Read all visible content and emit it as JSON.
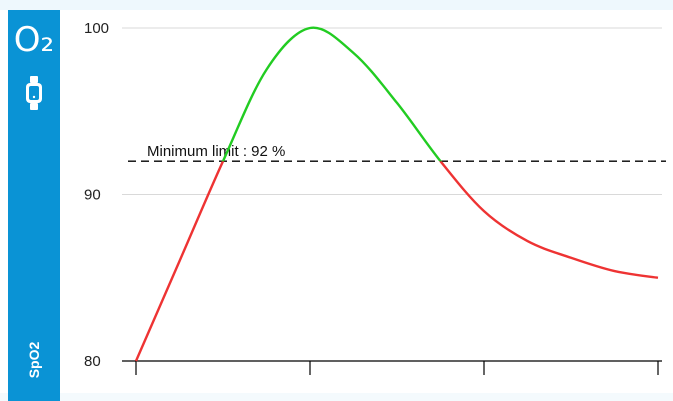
{
  "sidebar": {
    "icon_text": "O₂",
    "watch_icon": "smartwatch-icon",
    "label": "SpO2",
    "color": "#0a93d5"
  },
  "chart_data": {
    "type": "line",
    "title": "",
    "xlabel": "",
    "ylabel": "",
    "ylim": [
      80,
      100
    ],
    "y_ticks": [
      80,
      90,
      100
    ],
    "x_tick_count": 4,
    "grid": true,
    "x": [
      0,
      0.25,
      0.5,
      0.75,
      1,
      1.25,
      1.5,
      1.75,
      2,
      2.25,
      2.5,
      2.75,
      3
    ],
    "series": [
      {
        "values": [
          80,
          86,
          92,
          97.5,
          100,
          98.5,
          95.5,
          92,
          89,
          87.2,
          86.2,
          85.4,
          85
        ]
      }
    ],
    "threshold": {
      "value": 92,
      "label": "Minimum limit : 92 %",
      "style": "dashed"
    },
    "colors": {
      "above_threshold": "#22cc22",
      "below_threshold": "#ee3333",
      "gridline": "#d9d9d9",
      "axis": "#000000"
    }
  }
}
